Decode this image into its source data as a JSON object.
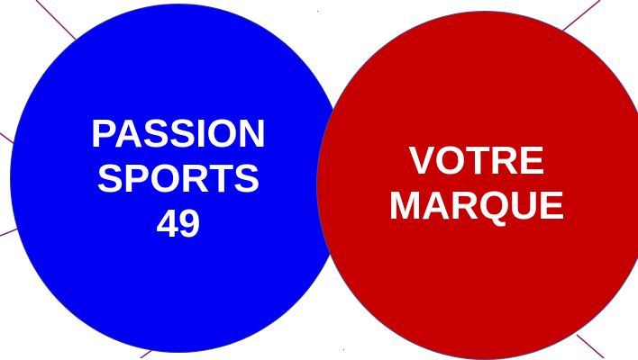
{
  "colors": {
    "blue_circle": "#0000f2",
    "red_circle": "#c60000",
    "line": "#8b1a6b",
    "text": "#ffffff"
  },
  "left_circle": {
    "line1": "PASSION",
    "line2": "SPORTS",
    "line3": "49"
  },
  "right_circle": {
    "line1": "VOTRE",
    "line2": "MARQUE"
  }
}
